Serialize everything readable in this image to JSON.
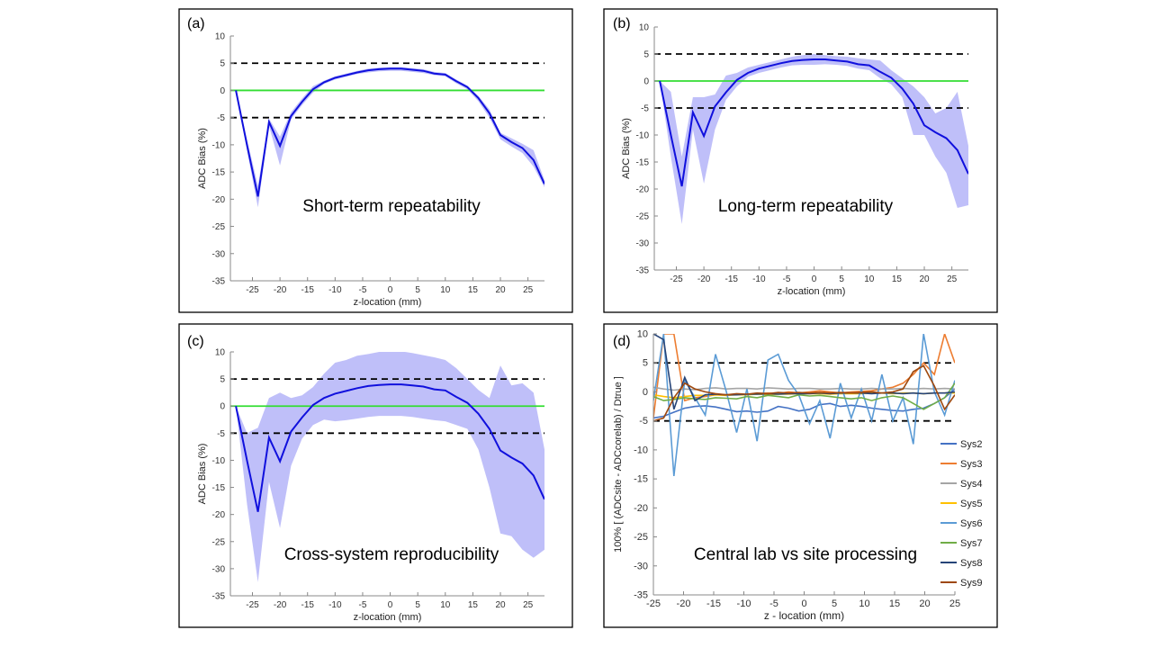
{
  "chart_data": [
    {
      "type": "line",
      "panel_label": "(a)",
      "title": "Short-term repeatability",
      "xlabel": "z-location (mm)",
      "ylabel": "ADC Bias (%)",
      "xlim": [
        -29,
        28
      ],
      "ylim": [
        -35,
        10
      ],
      "xticks": [
        -25,
        -20,
        -15,
        -10,
        -5,
        0,
        5,
        10,
        15,
        20,
        25
      ],
      "yticks": [
        10,
        5,
        0,
        -5,
        -10,
        -15,
        -20,
        -25,
        -30,
        -35
      ],
      "reference_lines": [
        {
          "y": 5,
          "style": "dashed",
          "color": "#000000"
        },
        {
          "y": -5,
          "style": "dashed",
          "color": "#000000"
        },
        {
          "y": 0,
          "style": "solid",
          "color": "#33dd33"
        }
      ],
      "mean": {
        "x": [
          -28,
          -26,
          -24,
          -22,
          -20,
          -18,
          -16,
          -14,
          -12,
          -10,
          -8,
          -6,
          -4,
          -2,
          0,
          2,
          4,
          6,
          8,
          10,
          12,
          14,
          16,
          18,
          20,
          22,
          24,
          26,
          28
        ],
        "y": [
          0,
          -10,
          -19.5,
          -5.8,
          -10.2,
          -4.7,
          -2.1,
          0.2,
          1.5,
          2.3,
          2.8,
          3.3,
          3.7,
          3.9,
          4,
          4,
          3.8,
          3.6,
          3.1,
          2.9,
          1.7,
          0.6,
          -1.4,
          -4.2,
          -8.2,
          -9.5,
          -10.6,
          -12.8,
          -17.2
        ],
        "color": "#1010dd"
      },
      "band": {
        "upper": [
          0,
          -9,
          -17.5,
          -5.2,
          -8.5,
          -4,
          -1.5,
          0.8,
          1.8,
          2.6,
          3.1,
          3.6,
          4,
          4.2,
          4.3,
          4.3,
          4.1,
          3.9,
          3.4,
          3.2,
          2,
          0.9,
          -1,
          -3.5,
          -7.8,
          -8.8,
          -9.8,
          -11,
          -16.5
        ],
        "lower": [
          0,
          -11,
          -21.5,
          -6.5,
          -13.8,
          -5.3,
          -2.7,
          -0.4,
          1.2,
          2,
          2.5,
          3,
          3.3,
          3.5,
          3.6,
          3.6,
          3.4,
          3.2,
          2.8,
          2.6,
          1.3,
          0.2,
          -2,
          -5,
          -9,
          -10.3,
          -11.5,
          -14,
          -17.8
        ],
        "color": "#b8b8f8"
      }
    },
    {
      "type": "line",
      "panel_label": "(b)",
      "title": "Long-term repeatability",
      "xlabel": "z-location (mm)",
      "ylabel": "ADC Bias (%)",
      "xlim": [
        -29,
        28
      ],
      "ylim": [
        -35,
        10
      ],
      "xticks": [
        -25,
        -20,
        -15,
        -10,
        -5,
        0,
        5,
        10,
        15,
        20,
        25
      ],
      "yticks": [
        10,
        5,
        0,
        -5,
        -10,
        -15,
        -20,
        -25,
        -30,
        -35
      ],
      "reference_lines": [
        {
          "y": 5,
          "style": "dashed",
          "color": "#000000"
        },
        {
          "y": -5,
          "style": "dashed",
          "color": "#000000"
        },
        {
          "y": 0,
          "style": "solid",
          "color": "#33dd33"
        }
      ],
      "mean": {
        "x": [
          -28,
          -26,
          -24,
          -22,
          -20,
          -18,
          -16,
          -14,
          -12,
          -10,
          -8,
          -6,
          -4,
          -2,
          0,
          2,
          4,
          6,
          8,
          10,
          12,
          14,
          16,
          18,
          20,
          22,
          24,
          26,
          28
        ],
        "y": [
          0,
          -10,
          -19.5,
          -5.8,
          -10.2,
          -4.7,
          -2.1,
          0.2,
          1.5,
          2.3,
          2.8,
          3.3,
          3.7,
          3.9,
          4,
          4,
          3.8,
          3.6,
          3.1,
          2.9,
          1.7,
          0.6,
          -1.4,
          -4.2,
          -8.2,
          -9.5,
          -10.6,
          -12.8,
          -17.2
        ],
        "color": "#1010dd"
      },
      "band": {
        "upper": [
          0,
          -2,
          -14,
          -3,
          -3,
          -2.5,
          1,
          1.5,
          2.5,
          3,
          3.5,
          4,
          4.5,
          4.8,
          5,
          4.8,
          4.6,
          4.5,
          4.2,
          4,
          3.8,
          2,
          0.5,
          -1,
          -3,
          -6,
          -5,
          -2,
          -12
        ],
        "lower": [
          0,
          -14,
          -26.5,
          -9,
          -19,
          -9,
          -3.5,
          -1,
          0.8,
          1.5,
          2,
          2.5,
          2.9,
          3,
          3,
          3.1,
          3,
          2.8,
          2.3,
          2,
          0.5,
          -0.6,
          -3,
          -10,
          -10,
          -14,
          -17,
          -23.5,
          -23
        ]
      }
    },
    {
      "type": "line",
      "panel_label": "(c)",
      "title": "Cross-system reproducibility",
      "xlabel": "z-location (mm)",
      "ylabel": "ADC Bias (%)",
      "xlim": [
        -29,
        28
      ],
      "ylim": [
        -35,
        10
      ],
      "xticks": [
        -25,
        -20,
        -15,
        -10,
        -5,
        0,
        5,
        10,
        15,
        20,
        25
      ],
      "yticks": [
        10,
        5,
        0,
        -5,
        -10,
        -15,
        -20,
        -25,
        -30,
        -35
      ],
      "reference_lines": [
        {
          "y": 5,
          "style": "dashed",
          "color": "#000000"
        },
        {
          "y": -5,
          "style": "dashed",
          "color": "#000000"
        },
        {
          "y": 0,
          "style": "solid",
          "color": "#33dd33"
        }
      ],
      "mean": {
        "x": [
          -28,
          -26,
          -24,
          -22,
          -20,
          -18,
          -16,
          -14,
          -12,
          -10,
          -8,
          -6,
          -4,
          -2,
          0,
          2,
          4,
          6,
          8,
          10,
          12,
          14,
          16,
          18,
          20,
          22,
          24,
          26,
          28
        ],
        "y": [
          0,
          -10,
          -19.5,
          -5.8,
          -10.2,
          -4.7,
          -2.1,
          0.2,
          1.5,
          2.3,
          2.8,
          3.3,
          3.7,
          3.9,
          4,
          4,
          3.8,
          3.6,
          3.1,
          2.9,
          1.7,
          0.6,
          -1.4,
          -4.2,
          -8.2,
          -9.5,
          -10.6,
          -12.8,
          -17.2
        ],
        "color": "#1010dd"
      },
      "band": {
        "upper": [
          0,
          -5,
          -4,
          1.5,
          2.5,
          1.5,
          2,
          3.5,
          6,
          8,
          8.5,
          9.3,
          9.6,
          10,
          10.2,
          10.1,
          9.8,
          9.4,
          9,
          8.5,
          7,
          5,
          3,
          1.5,
          7.5,
          3.8,
          4.2,
          2.5,
          -8
        ],
        "lower": [
          0,
          -18,
          -32.5,
          -14,
          -22.5,
          -11,
          -6,
          -3.5,
          -2.5,
          -2.8,
          -2.6,
          -2.3,
          -2,
          -1.8,
          -1.8,
          -1.8,
          -2,
          -2.3,
          -2.6,
          -2.8,
          -3.5,
          -4.2,
          -8,
          -15,
          -23.5,
          -24,
          -26.5,
          -28,
          -26.5
        ]
      }
    },
    {
      "type": "line",
      "panel_label": "(d)",
      "title": "Central lab vs site processing",
      "xlabel": "z - location (mm)",
      "ylabel": "100% [ (ADCsite - ADCcorelab) / Dtrue ]",
      "xlim": [
        -25,
        25
      ],
      "ylim": [
        -35,
        10
      ],
      "xticks": [
        -25,
        -20,
        -15,
        -10,
        -5,
        0,
        5,
        10,
        15,
        20,
        25
      ],
      "yticks": [
        10,
        5,
        0,
        -5,
        -10,
        -15,
        -20,
        -25,
        -30,
        -35
      ],
      "reference_lines": [
        {
          "y": 5,
          "style": "dashed",
          "color": "#000000"
        },
        {
          "y": -5,
          "style": "dashed",
          "color": "#000000"
        }
      ],
      "x": [
        -25,
        -23.3,
        -21.6,
        -19.8,
        -18.1,
        -16.4,
        -14.7,
        -12.9,
        -11.2,
        -9.5,
        -7.8,
        -6,
        -4.3,
        -2.6,
        -0.9,
        0.9,
        2.6,
        4.3,
        6,
        7.8,
        9.5,
        11.2,
        12.9,
        14.7,
        16.4,
        18.1,
        19.8,
        21.6,
        23.3,
        25
      ],
      "series": [
        {
          "name": "Sys2",
          "color": "#4472c4",
          "values": [
            -4.5,
            -4.2,
            -3.5,
            -2.8,
            -2.5,
            -2.4,
            -2.6,
            -3,
            -3.4,
            -3.3,
            -3.5,
            -3.3,
            -2.5,
            -2.8,
            -3.3,
            -3,
            -2.2,
            -2,
            -2.5,
            -2.3,
            -2.5,
            -2.8,
            -3,
            -3.2,
            -3.3,
            -3,
            -2.8,
            -2,
            -1,
            0.5
          ]
        },
        {
          "name": "Sys3",
          "color": "#ed7d31",
          "values": [
            -4.5,
            10,
            10,
            -1.5,
            -1,
            -0.8,
            -0.5,
            -0.6,
            -0.4,
            -0.5,
            -0.3,
            -0.2,
            -0.3,
            0,
            -0.2,
            0,
            0.2,
            0,
            -0.2,
            0,
            0.1,
            0.2,
            0.5,
            0.8,
            1.5,
            3,
            5,
            3,
            10,
            5
          ]
        },
        {
          "name": "Sys4",
          "color": "#a5a5a5",
          "values": [
            0.8,
            0.5,
            0.3,
            0.5,
            0.4,
            0.6,
            0.7,
            0.5,
            0.6,
            0.6,
            0.5,
            0.7,
            0.6,
            0.5,
            0.6,
            0.6,
            0.5,
            0.5,
            0.6,
            0.5,
            0.5,
            0.6,
            0.5,
            0.5,
            0.6,
            0.5,
            0.6,
            0.5,
            0.6,
            0.5
          ]
        },
        {
          "name": "Sys5",
          "color": "#ffc000",
          "values": [
            -0.5,
            -0.8,
            -1,
            -0.8,
            -0.6,
            -0.6,
            -0.5,
            -0.6,
            -0.5,
            -0.5,
            -0.4,
            -0.5,
            -0.4,
            -0.4,
            -0.3,
            -0.3,
            -0.3,
            -0.4,
            -0.3,
            -0.3,
            -0.3,
            -0.2,
            -0.2,
            -0.3,
            -0.2,
            -0.2,
            -0.3,
            -0.2,
            -0.2,
            -0.2
          ]
        },
        {
          "name": "Sys6",
          "color": "#5b9bd5",
          "values": [
            -1.5,
            10,
            -14.5,
            2,
            -1,
            -4,
            6.5,
            0,
            -7,
            0.5,
            -8.5,
            5.5,
            6.5,
            2,
            -0.5,
            -5.5,
            -1.5,
            -8,
            1.5,
            -4.5,
            0.5,
            -5,
            3,
            -5,
            -1,
            -9,
            10,
            0,
            -4,
            2
          ]
        },
        {
          "name": "Sys7",
          "color": "#70ad47",
          "values": [
            -0.8,
            -1.5,
            -1.3,
            -1,
            -1.2,
            -1.3,
            -1,
            -1.1,
            -1.2,
            -0.8,
            -1,
            -0.6,
            -0.8,
            -1,
            -0.5,
            -0.7,
            -0.6,
            -0.8,
            -1,
            -1.2,
            -1,
            -1.5,
            -1,
            -0.7,
            -1,
            -2,
            -3,
            -2,
            -1,
            1.5
          ]
        },
        {
          "name": "Sys8",
          "color": "#264478",
          "values": [
            10,
            9,
            -3,
            2.5,
            -1.5,
            -0.5,
            -0.4,
            -0.5,
            -0.5,
            -0.4,
            -0.4,
            -0.3,
            -0.4,
            -0.3,
            -0.3,
            -0.3,
            -0.2,
            -0.3,
            -0.2,
            -0.2,
            -0.2,
            -0.3,
            -0.2,
            -0.2,
            -0.3,
            -0.2,
            -0.3,
            -0.2,
            -0.2,
            0
          ]
        },
        {
          "name": "Sys9",
          "color": "#9e480e",
          "values": [
            -5,
            -4.5,
            -1,
            1.5,
            0.5,
            0,
            -0.3,
            -0.5,
            -0.3,
            -0.4,
            -0.2,
            -0.3,
            -0.1,
            -0.2,
            -0.1,
            -0.2,
            -0.1,
            -0.2,
            -0.1,
            -0.2,
            -0.1,
            0,
            -0.2,
            0,
            0.5,
            3.5,
            4.5,
            1,
            -3,
            -0.5
          ]
        }
      ]
    }
  ]
}
